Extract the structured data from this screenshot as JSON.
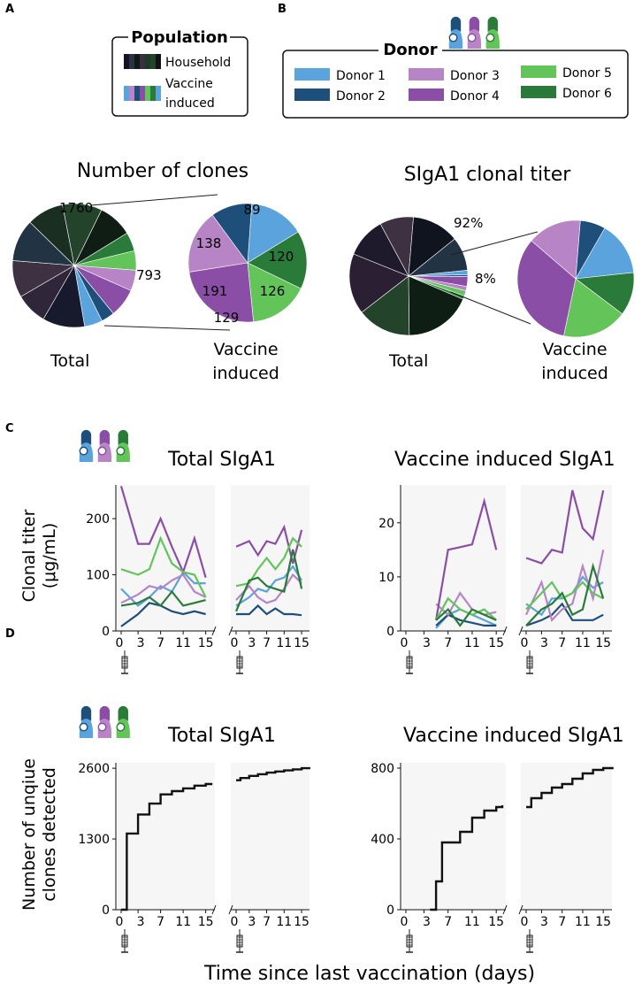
{
  "panel_letters": {
    "a": "A",
    "b": "B",
    "c": "C",
    "d": "D"
  },
  "colors": {
    "donor1": "#5ba3dc",
    "donor2": "#1e4f7a",
    "donor3": "#b784c6",
    "donor4": "#8b4ea6",
    "donor5": "#63c45a",
    "donor6": "#2a7b3a",
    "household": [
      "#161a2c",
      "#2f2739",
      "#3d3142",
      "#223343",
      "#1a2e21",
      "#23432a",
      "#0f1d14"
    ]
  },
  "population_legend": {
    "title": "Population",
    "household": "Household",
    "vaccine_line1": "Vaccine",
    "vaccine_line2": "induced"
  },
  "donor_legend": {
    "title": "Donor",
    "donors": [
      "Donor 1",
      "Donor 2",
      "Donor 3",
      "Donor 4",
      "Donor 5",
      "Donor 6"
    ]
  },
  "chart_data": [
    {
      "type": "pie",
      "title": "Number of clones",
      "label": "Total",
      "annotations": {
        "household": "1760",
        "vaccine": "793"
      },
      "slices": [
        {
          "name": "Household",
          "value": 1760
        },
        {
          "name": "Vaccine induced",
          "value": 793
        }
      ]
    },
    {
      "type": "pie",
      "title": "Number of clones",
      "label_line1": "Vaccine",
      "label_line2": "induced",
      "slices": [
        {
          "name": "Donor 1",
          "value": 120
        },
        {
          "name": "Donor 6",
          "value": 126
        },
        {
          "name": "Donor 5",
          "value": 129
        },
        {
          "name": "Donor 4",
          "value": 191
        },
        {
          "name": "Donor 3",
          "value": 138
        },
        {
          "name": "Donor 2",
          "value": 89
        }
      ]
    },
    {
      "type": "pie",
      "title": "SIgA1 clonal titer",
      "label": "Total",
      "annotations": {
        "household": "92%",
        "vaccine": "8%"
      },
      "slices": [
        {
          "name": "Household",
          "value": 92
        },
        {
          "name": "Vaccine induced",
          "value": 8
        }
      ]
    },
    {
      "type": "pie",
      "title": "SIgA1 clonal titer",
      "label_line1": "Vaccine",
      "label_line2": "induced",
      "slices": [
        {
          "name": "Donor 1",
          "value": 15
        },
        {
          "name": "Donor 6",
          "value": 12
        },
        {
          "name": "Donor 5",
          "value": 18
        },
        {
          "name": "Donor 4",
          "value": 33
        },
        {
          "name": "Donor 3",
          "value": 15
        },
        {
          "name": "Donor 2",
          "value": 7
        }
      ]
    },
    {
      "type": "line",
      "title": "Total SIgA1",
      "ylabel_line1": "Clonal titer",
      "ylabel_line2": "(μg/mL)",
      "ylim": [
        0,
        260
      ],
      "yticks": [
        0,
        100,
        200
      ],
      "xticks": [
        "0",
        "3",
        "7",
        "11",
        "15"
      ],
      "x": [
        0,
        3,
        5,
        7,
        9,
        11,
        13,
        15
      ],
      "periods": [
        {
          "series": [
            {
              "name": "Donor 1",
              "values": [
                75,
                45,
                60,
                80,
                70,
                105,
                85,
                85
              ]
            },
            {
              "name": "Donor 2",
              "values": [
                8,
                30,
                50,
                45,
                35,
                30,
                35,
                30
              ]
            },
            {
              "name": "Donor 3",
              "values": [
                50,
                65,
                80,
                75,
                90,
                100,
                70,
                60
              ]
            },
            {
              "name": "Donor 4",
              "values": [
                258,
                155,
                155,
                200,
                150,
                105,
                165,
                95
              ]
            },
            {
              "name": "Donor 5",
              "values": [
                110,
                100,
                110,
                165,
                120,
                105,
                100,
                60
              ]
            },
            {
              "name": "Donor 6",
              "values": [
                45,
                50,
                60,
                45,
                70,
                45,
                50,
                55
              ]
            }
          ]
        },
        {
          "series": [
            {
              "name": "Donor 1",
              "values": [
                45,
                60,
                75,
                70,
                90,
                95,
                115,
                90
              ]
            },
            {
              "name": "Donor 2",
              "values": [
                30,
                30,
                45,
                30,
                40,
                30,
                30,
                28
              ]
            },
            {
              "name": "Donor 3",
              "values": [
                55,
                80,
                60,
                50,
                55,
                75,
                100,
                85
              ]
            },
            {
              "name": "Donor 4",
              "values": [
                150,
                160,
                135,
                160,
                155,
                185,
                120,
                180
              ]
            },
            {
              "name": "Donor 5",
              "values": [
                80,
                85,
                110,
                130,
                110,
                130,
                165,
                150
              ]
            },
            {
              "name": "Donor 6",
              "values": [
                35,
                90,
                95,
                80,
                75,
                70,
                145,
                75
              ]
            }
          ]
        }
      ]
    },
    {
      "type": "line",
      "title": "Vaccine induced SIgA1",
      "ylim": [
        0,
        27
      ],
      "yticks": [
        0,
        10,
        20
      ],
      "xticks": [
        "0",
        "3",
        "7",
        "11",
        "15"
      ],
      "x": [
        0,
        3,
        5,
        7,
        9,
        11,
        13,
        15
      ],
      "periods": [
        {
          "series": [
            {
              "name": "Donor 1",
              "values": [
                null,
                null,
                0.5,
                3,
                4,
                3,
                2,
                1
              ]
            },
            {
              "name": "Donor 2",
              "values": [
                null,
                null,
                1,
                3,
                2,
                1.5,
                1,
                1
              ]
            },
            {
              "name": "Donor 3",
              "values": [
                null,
                null,
                5,
                3,
                7,
                4,
                3,
                3.5
              ]
            },
            {
              "name": "Donor 4",
              "values": [
                null,
                null,
                2,
                15,
                15.5,
                16,
                24,
                15
              ]
            },
            {
              "name": "Donor 5",
              "values": [
                null,
                null,
                2,
                6,
                4,
                3,
                4,
                2
              ]
            },
            {
              "name": "Donor 6",
              "values": [
                null,
                null,
                2,
                4,
                1,
                4,
                3,
                2
              ]
            }
          ]
        },
        {
          "series": [
            {
              "name": "Donor 1",
              "values": [
                5,
                3,
                6,
                6,
                7,
                10,
                8,
                9
              ]
            },
            {
              "name": "Donor 2",
              "values": [
                1,
                2,
                3,
                5,
                2,
                2,
                2,
                3
              ]
            },
            {
              "name": "Donor 3",
              "values": [
                3,
                9,
                2,
                4,
                5,
                12,
                6,
                15
              ]
            },
            {
              "name": "Donor 4",
              "values": [
                13.5,
                12.5,
                15,
                14.5,
                26,
                19,
                17,
                26
              ]
            },
            {
              "name": "Donor 5",
              "values": [
                4,
                7,
                9,
                6,
                7,
                9,
                7,
                6
              ]
            },
            {
              "name": "Donor 6",
              "values": [
                1,
                4,
                5,
                7,
                3,
                4,
                12,
                6
              ]
            }
          ]
        }
      ]
    },
    {
      "type": "step",
      "title": "Total SIgA1",
      "ylabel_line1": "Number of unqiue",
      "ylabel_line2": "clones detected",
      "ylim": [
        0,
        2700
      ],
      "yticks": [
        0,
        1300,
        2600
      ],
      "xticks": [
        "0",
        "3",
        "7",
        "11",
        "15"
      ],
      "periods": [
        {
          "x": [
            0,
            1,
            3,
            5,
            7,
            9,
            11,
            13,
            15,
            16
          ],
          "y": [
            0,
            1400,
            1750,
            1950,
            2120,
            2180,
            2230,
            2280,
            2310,
            2330
          ]
        },
        {
          "x": [
            0,
            1,
            3,
            5,
            7,
            9,
            11,
            13,
            15,
            17
          ],
          "y": [
            2380,
            2420,
            2460,
            2490,
            2520,
            2540,
            2560,
            2580,
            2600,
            2600
          ]
        }
      ]
    },
    {
      "type": "step",
      "title": "Vaccine induced SIgA1",
      "ylim": [
        0,
        830
      ],
      "yticks": [
        0,
        400,
        800
      ],
      "xticks": [
        "0",
        "3",
        "7",
        "11",
        "15"
      ],
      "periods": [
        {
          "x": [
            4,
            5,
            6,
            7,
            9,
            11,
            13,
            15,
            16
          ],
          "y": [
            0,
            160,
            380,
            380,
            440,
            520,
            560,
            580,
            590
          ]
        },
        {
          "x": [
            0,
            1,
            3,
            5,
            7,
            9,
            11,
            13,
            15,
            17
          ],
          "y": [
            580,
            630,
            660,
            690,
            710,
            740,
            770,
            790,
            800,
            800
          ]
        }
      ]
    }
  ],
  "xlabel": "Time since last vaccination (days)"
}
